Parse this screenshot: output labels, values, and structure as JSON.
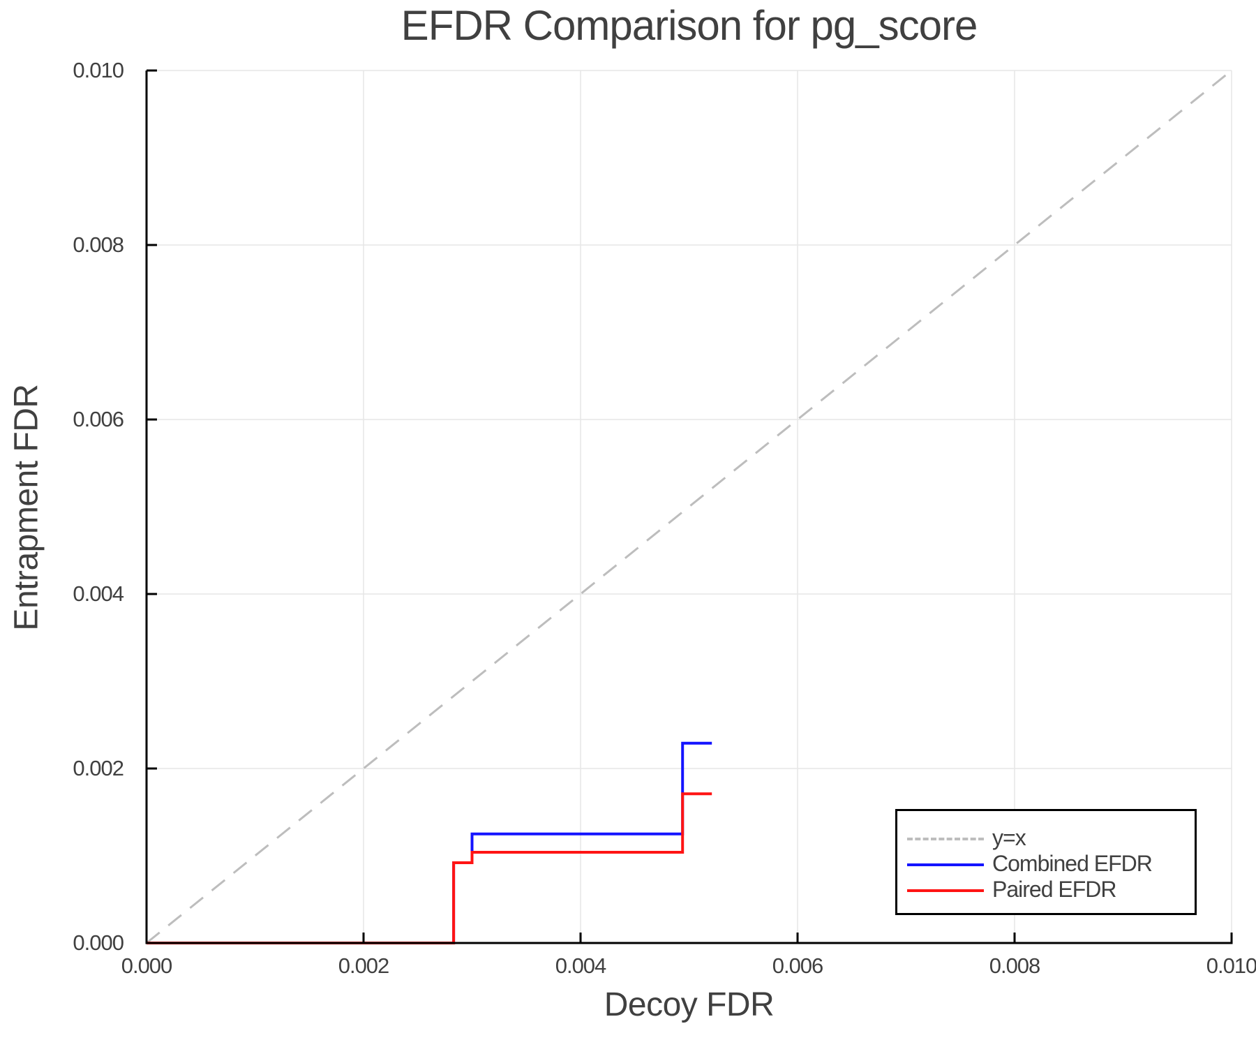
{
  "chart_data": {
    "type": "line",
    "title": "EFDR Comparison for pg_score",
    "xlabel": "Decoy FDR",
    "ylabel": "Entrapment FDR",
    "xlim": [
      0.0,
      0.01
    ],
    "ylim": [
      0.0,
      0.01
    ],
    "xticks": [
      "0.000",
      "0.002",
      "0.004",
      "0.006",
      "0.008",
      "0.010"
    ],
    "yticks": [
      "0.000",
      "0.002",
      "0.004",
      "0.006",
      "0.008",
      "0.010"
    ],
    "grid": true,
    "legend_position": "bottom-right",
    "series": [
      {
        "name": "y=x",
        "style": "dashed",
        "color": "#bdbdbd",
        "x": [
          0.0,
          0.01
        ],
        "y": [
          0.0,
          0.01
        ]
      },
      {
        "name": "Combined EFDR",
        "style": "step",
        "color": "#1414ff",
        "x": [
          0.0,
          0.00283,
          0.00283,
          0.003,
          0.003,
          0.00494,
          0.00494,
          0.00521
        ],
        "y": [
          0.0,
          0.0,
          0.00092,
          0.00092,
          0.00125,
          0.00125,
          0.00229,
          0.00229
        ]
      },
      {
        "name": "Paired EFDR",
        "style": "step",
        "color": "#ff1414",
        "x": [
          0.0,
          0.00283,
          0.00283,
          0.003,
          0.003,
          0.00494,
          0.00494,
          0.00521
        ],
        "y": [
          0.0,
          0.0,
          0.00092,
          0.00092,
          0.00104,
          0.00104,
          0.00171,
          0.00171
        ]
      }
    ]
  },
  "legend": {
    "items": [
      {
        "label": "y=x",
        "color": "#bdbdbd",
        "dashed": true
      },
      {
        "label": "Combined EFDR",
        "color": "#1414ff",
        "dashed": false
      },
      {
        "label": "Paired EFDR",
        "color": "#ff1414",
        "dashed": false
      }
    ]
  }
}
